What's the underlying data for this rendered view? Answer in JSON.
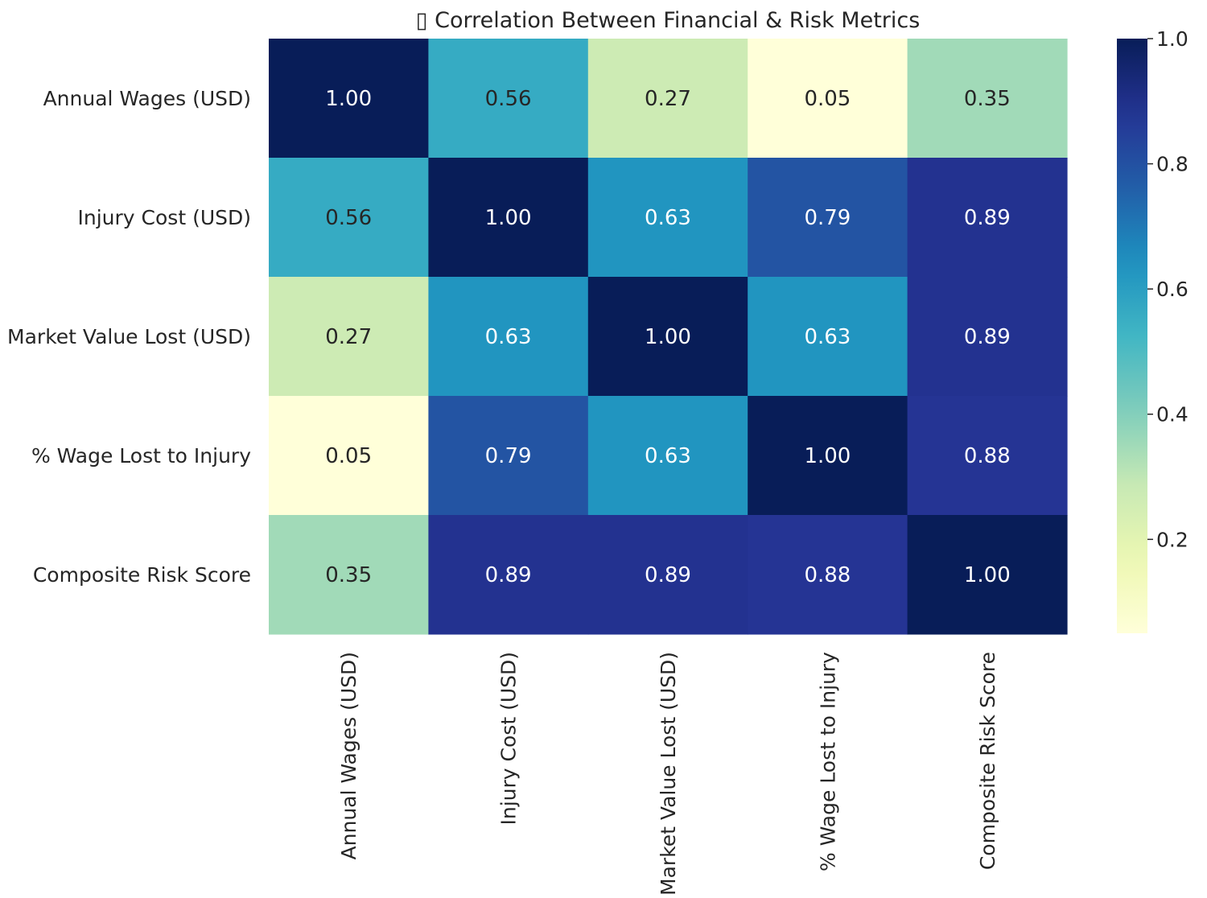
{
  "chart_data": {
    "type": "heatmap",
    "title": "▯ Correlation Between Financial & Risk Metrics",
    "row_labels": [
      "Annual Wages (USD)",
      "Injury Cost (USD)",
      "Market Value Lost (USD)",
      "% Wage Lost to Injury",
      "Composite Risk Score"
    ],
    "col_labels": [
      "Annual Wages (USD)",
      "Injury Cost (USD)",
      "Market Value Lost (USD)",
      "% Wage Lost to Injury",
      "Composite Risk Score"
    ],
    "values": [
      [
        1.0,
        0.56,
        0.27,
        0.05,
        0.35
      ],
      [
        0.56,
        1.0,
        0.63,
        0.79,
        0.89
      ],
      [
        0.27,
        0.63,
        1.0,
        0.63,
        0.89
      ],
      [
        0.05,
        0.79,
        0.63,
        1.0,
        0.88
      ],
      [
        0.35,
        0.89,
        0.89,
        0.88,
        1.0
      ]
    ],
    "value_labels": [
      [
        "1.00",
        "0.56",
        "0.27",
        "0.05",
        "0.35"
      ],
      [
        "0.56",
        "1.00",
        "0.63",
        "0.79",
        "0.89"
      ],
      [
        "0.27",
        "0.63",
        "1.00",
        "0.63",
        "0.89"
      ],
      [
        "0.05",
        "0.79",
        "0.63",
        "1.00",
        "0.88"
      ],
      [
        "0.35",
        "0.89",
        "0.89",
        "0.88",
        "1.00"
      ]
    ],
    "colormap": "YlGnBu",
    "vmin": 0.05,
    "vmax": 1.0,
    "colorbar": {
      "ticks": [
        0.2,
        0.4,
        0.6,
        0.8,
        1.0
      ],
      "tick_labels": [
        "0.2",
        "0.4",
        "0.6",
        "0.8",
        "1.0"
      ]
    }
  }
}
